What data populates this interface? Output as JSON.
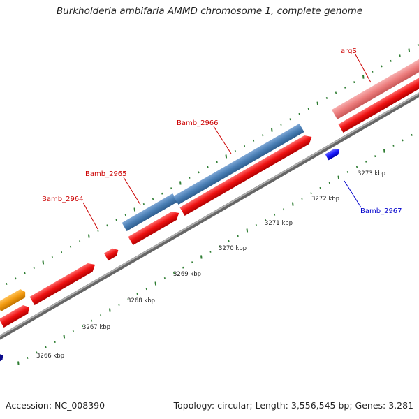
{
  "title": "Burkholderia ambifaria AMMD chromosome 1, complete genome",
  "footer": {
    "accession": "Accession: NC_008390",
    "summary": "Topology: circular; Length: 3,556,545 bp; Genes: 3,281"
  },
  "colors": {
    "backbone": "#8c8c8c",
    "tick": "#2e7d32",
    "gene_red": "#ee1111",
    "gene_blue": "#1a1aff",
    "gene_steelblue": "#4a7fb5",
    "gene_orange": "#f29a0f",
    "gene_pink": "#ec7c7c",
    "gene_navy": "#0a0a8c",
    "label_red": "#cc0000",
    "label_blue": "#0000cc"
  },
  "kbp_labels": [
    "3266 kbp",
    "3267 kbp",
    "3268 kbp",
    "3269 kbp",
    "3270 kbp",
    "3271 kbp",
    "3272 kbp",
    "3273 kbp"
  ],
  "gene_labels": [
    {
      "text": "argS",
      "strand": "forward"
    },
    {
      "text": "Bamb_2966",
      "strand": "forward"
    },
    {
      "text": "Bamb_2965",
      "strand": "forward"
    },
    {
      "text": "Bamb_2964",
      "strand": "forward"
    },
    {
      "text": "Bamb_2967",
      "strand": "reverse"
    }
  ]
}
